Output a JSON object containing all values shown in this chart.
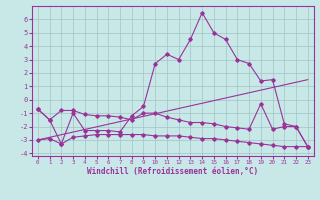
{
  "bg_color": "#c8e8e8",
  "grid_color": "#a0c4c4",
  "line_color": "#993399",
  "xlim": [
    -0.5,
    23.5
  ],
  "ylim": [
    -4.2,
    7.0
  ],
  "xlabel": "Windchill (Refroidissement éolien,°C)",
  "xticks": [
    0,
    1,
    2,
    3,
    4,
    5,
    6,
    7,
    8,
    9,
    10,
    11,
    12,
    13,
    14,
    15,
    16,
    17,
    18,
    19,
    20,
    21,
    22,
    23
  ],
  "yticks": [
    -4,
    -3,
    -2,
    -1,
    0,
    1,
    2,
    3,
    4,
    5,
    6
  ],
  "lines": [
    {
      "x": [
        0,
        1,
        2,
        3,
        4,
        5,
        6,
        7,
        8,
        9,
        10,
        11,
        12,
        13,
        14,
        15,
        16,
        17,
        18,
        19,
        20,
        21,
        22,
        23
      ],
      "y": [
        -0.7,
        -1.5,
        -0.8,
        -0.8,
        -1.1,
        -1.2,
        -1.2,
        -1.3,
        -1.5,
        -1.0,
        -1.0,
        -1.3,
        -1.5,
        -1.7,
        -1.7,
        -1.8,
        -2.0,
        -2.1,
        -2.2,
        -0.3,
        -2.2,
        -2.0,
        -2.0,
        -3.5
      ]
    },
    {
      "x": [
        0,
        23
      ],
      "y": [
        -3.0,
        1.5
      ]
    },
    {
      "x": [
        0,
        1,
        2,
        3,
        4,
        5,
        6,
        7,
        8,
        9,
        10,
        11,
        12,
        13,
        14,
        15,
        16,
        17,
        18,
        19,
        20,
        21,
        22,
        23
      ],
      "y": [
        -0.7,
        -1.5,
        -3.3,
        -1.0,
        -2.3,
        -2.3,
        -2.3,
        -2.4,
        -1.2,
        -0.5,
        2.7,
        3.4,
        3.0,
        4.5,
        6.5,
        5.0,
        4.5,
        3.0,
        2.7,
        1.4,
        1.5,
        -1.8,
        -2.0,
        -3.5
      ]
    },
    {
      "x": [
        0,
        1,
        2,
        3,
        4,
        5,
        6,
        7,
        8,
        9,
        10,
        11,
        12,
        13,
        14,
        15,
        16,
        17,
        18,
        19,
        20,
        21,
        22,
        23
      ],
      "y": [
        -3.0,
        -2.9,
        -3.3,
        -2.8,
        -2.7,
        -2.6,
        -2.6,
        -2.6,
        -2.6,
        -2.6,
        -2.7,
        -2.7,
        -2.7,
        -2.8,
        -2.9,
        -2.9,
        -3.0,
        -3.1,
        -3.2,
        -3.3,
        -3.4,
        -3.5,
        -3.5,
        -3.5
      ]
    }
  ]
}
